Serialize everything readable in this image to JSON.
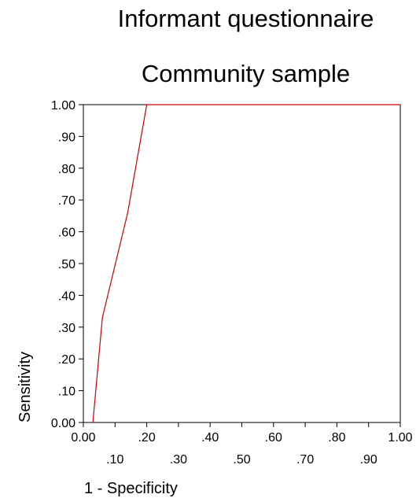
{
  "titles": [
    "Informant questionnaire",
    "Community sample"
  ],
  "chart_data": {
    "type": "line",
    "title": "Informant questionnaire",
    "subtitle": "Community sample",
    "xlabel": "1 - Specificity",
    "ylabel": "Sensitivity",
    "xlim": [
      0,
      1
    ],
    "ylim": [
      0,
      1
    ],
    "grid": false,
    "legend": "none",
    "x_ticks_upper": [
      ".10",
      ".30",
      ".50",
      ".70",
      ".90"
    ],
    "x_ticks_lower": [
      "0.00",
      ".20",
      ".40",
      ".60",
      ".80",
      "1.00"
    ],
    "y_ticks": [
      "0.00",
      ".10",
      ".20",
      ".30",
      ".40",
      ".50",
      ".60",
      ".70",
      ".80",
      ".90",
      "1.00"
    ],
    "series": [
      {
        "color": "#cc0000",
        "x": [
          0.03,
          0.06,
          0.14,
          0.2,
          1.0
        ],
        "y": [
          0.0,
          0.33,
          0.66,
          1.0,
          1.0
        ]
      }
    ]
  }
}
